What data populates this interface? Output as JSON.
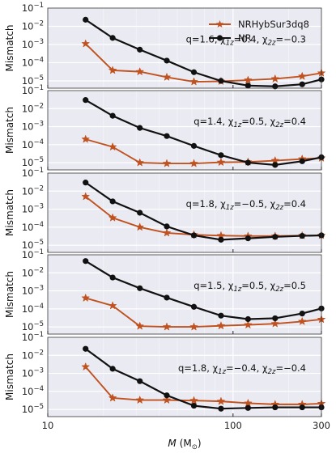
{
  "chart_data": {
    "type": "line",
    "x_label_parts": {
      "symbol": "M",
      "unit": "(M",
      "unit_sub": "⊙",
      "close": ")"
    },
    "y_label": "Mismatch",
    "x_scale": "log",
    "y_scale": "log",
    "xlim": [
      10,
      300
    ],
    "x_ticks": [
      10,
      100,
      300
    ],
    "x_tick_labels": [
      "10",
      "100",
      "300"
    ],
    "y_exp_ticks": [
      -5,
      -4,
      -3,
      -2,
      -1
    ],
    "y_tick_base": "10",
    "legend": {
      "placement": "top-right",
      "entries": [
        {
          "name": "NRHybSur3dq8",
          "color": "#c0521f",
          "marker": "star"
        },
        {
          "name": "NR",
          "color": "#111111",
          "marker": "circle"
        }
      ]
    },
    "x": [
      16,
      22.4,
      31.4,
      43.9,
      61.5,
      86.1,
      120.5,
      168.7,
      236.2,
      300
    ],
    "panels": [
      {
        "annotation": [
          {
            "t": "q=1.6, χ"
          },
          {
            "t": "1z",
            "sub": true
          },
          {
            "t": "=0.4, χ"
          },
          {
            "t": "2z",
            "sub": true
          },
          {
            "t": "=−0.3"
          }
        ],
        "ylim_exp": [
          -5.4,
          -1
        ],
        "series": [
          {
            "name": "NRHybSur3dq8",
            "values": [
              0.0011,
              3.8e-05,
              3.2e-05,
              1.6e-05,
              9e-06,
              9.5e-06,
              1.1e-05,
              1.3e-05,
              1.8e-05,
              2.7e-05
            ]
          },
          {
            "name": "NR",
            "values": [
              0.023,
              0.0023,
              0.00052,
              0.00013,
              3e-05,
              1e-05,
              5.5e-06,
              5e-06,
              6.5e-06,
              1.2e-05
            ]
          }
        ]
      },
      {
        "annotation": [
          {
            "t": "q=1.4, χ"
          },
          {
            "t": "1z",
            "sub": true
          },
          {
            "t": "=0.5, χ"
          },
          {
            "t": "2z",
            "sub": true
          },
          {
            "t": "=0.4"
          }
        ],
        "ylim_exp": [
          -5.4,
          -1
        ],
        "series": [
          {
            "name": "NRHybSur3dq8",
            "values": [
              0.0002,
              7.5e-05,
              1e-05,
              9e-06,
              9e-06,
              1.05e-05,
              1.1e-05,
              1.3e-05,
              1.6e-05,
              1.8e-05
            ]
          },
          {
            "name": "NR",
            "values": [
              0.03,
              0.004,
              0.00085,
              0.0003,
              8.5e-05,
              2.6e-05,
              1e-05,
              7.5e-06,
              1.2e-05,
              2e-05
            ]
          }
        ]
      },
      {
        "annotation": [
          {
            "t": "q=1.8, χ"
          },
          {
            "t": "1z",
            "sub": true
          },
          {
            "t": "=−0.5, χ"
          },
          {
            "t": "2z",
            "sub": true
          },
          {
            "t": "=0.4"
          }
        ],
        "ylim_exp": [
          -5.4,
          -1
        ],
        "series": [
          {
            "name": "NRHybSur3dq8",
            "values": [
              0.005,
              0.00033,
              0.0001,
              4.8e-05,
              3.8e-05,
              3.4e-05,
              3.2e-05,
              3.2e-05,
              3.4e-05,
              3.5e-05
            ]
          },
          {
            "name": "NR",
            "values": [
              0.03,
              0.0027,
              0.00063,
              0.00011,
              3.5e-05,
              2e-05,
              2.4e-05,
              2.9e-05,
              3.3e-05,
              3.5e-05
            ]
          }
        ]
      },
      {
        "annotation": [
          {
            "t": "q=1.5, χ"
          },
          {
            "t": "1z",
            "sub": true
          },
          {
            "t": "=0.5, χ"
          },
          {
            "t": "2z",
            "sub": true
          },
          {
            "t": "=0.5"
          }
        ],
        "ylim_exp": [
          -5.4,
          -1
        ],
        "series": [
          {
            "name": "NRHybSur3dq8",
            "values": [
              0.0004,
              0.00015,
              1.1e-05,
              1e-05,
              1e-05,
              1.15e-05,
              1.3e-05,
              1.5e-05,
              2e-05,
              2.6e-05
            ]
          },
          {
            "name": "NR",
            "values": [
              0.045,
              0.0055,
              0.0014,
              0.00042,
              0.00013,
              4.2e-05,
              2.7e-05,
              3e-05,
              5.5e-05,
              0.000105
            ]
          }
        ]
      },
      {
        "annotation": [
          {
            "t": "q=1.8, χ"
          },
          {
            "t": "1z",
            "sub": true
          },
          {
            "t": "=−0.4, χ"
          },
          {
            "t": "2z",
            "sub": true
          },
          {
            "t": "=−0.4"
          }
        ],
        "ylim_exp": [
          -5.4,
          -1
        ],
        "series": [
          {
            "name": "NRHybSur3dq8",
            "values": [
              0.0023,
              4.3e-05,
              3.3e-05,
              3.3e-05,
              3.1e-05,
              2.8e-05,
              2.2e-05,
              1.9e-05,
              1.9e-05,
              2.1e-05
            ]
          },
          {
            "name": "NR",
            "values": [
              0.023,
              0.0018,
              0.00037,
              6e-05,
              1.6e-05,
              1.1e-05,
              1.2e-05,
              1.3e-05,
              1.3e-05,
              1.3e-05
            ]
          }
        ]
      }
    ]
  }
}
